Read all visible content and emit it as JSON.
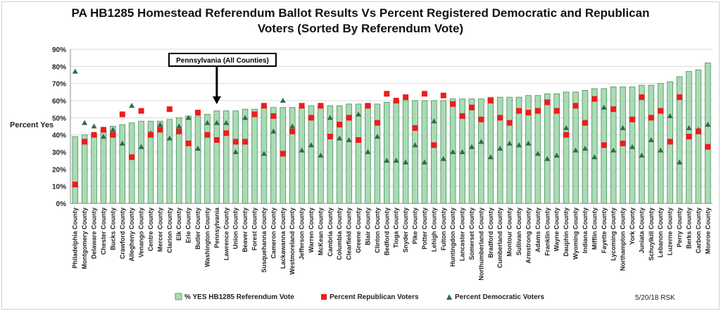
{
  "chart_data": {
    "type": "bar",
    "title_line1": "PA HB1285 Homestead Referendum Ballot Results Vs Percent Registered Democratic and Republican",
    "title_line2": "Voters (Sorted By Referendum Vote)",
    "ylabel": "Percent Yes",
    "ylim": [
      0,
      90
    ],
    "yticks": [
      "0%",
      "10%",
      "20%",
      "30%",
      "40%",
      "50%",
      "60%",
      "70%",
      "80%",
      "90%"
    ],
    "grid": true,
    "legend_position": "bottom",
    "callout": "Pennsylvania (All Counties)",
    "footnote": "5/20/18 RSK",
    "colors": {
      "bar": "#a9dbb5",
      "bar_edge": "#4a8f5a",
      "republican": "#ee1c1c",
      "democratic": "#2e6b4a"
    },
    "categories": [
      "Philadelphia County",
      "Montgomery County",
      "Delaware County",
      "Chester County",
      "Bucks County",
      "Crawford County",
      "Allegheny County",
      "Venango County",
      "Centre County",
      "Mercer County",
      "Clarion County",
      "Elk County",
      "Erie County",
      "Butler County",
      "Washington County",
      "Pennsylvania",
      "Lawrence County",
      "Union County",
      "Beaver County",
      "Forest County",
      "Susquehanna County",
      "Cameron County",
      "Lackawanna County",
      "Westmoreland County",
      "Jefferson County",
      "Warren County",
      "McKean County",
      "Cambria County",
      "Columbia County",
      "Clearfield County",
      "Greene County",
      "Blair County",
      "Clinton County",
      "Bedford County",
      "Tioga County",
      "Snyder County",
      "Pike County",
      "Potter County",
      "Lehigh County",
      "Fulton County",
      "Huntingdon County",
      "Lancaster County",
      "Somerset County",
      "Northumberland County",
      "Bradford County",
      "Cumberland County",
      "Montour County",
      "Sullivan County",
      "Armstrong County",
      "Adams County",
      "Franklin County",
      "Wayne County",
      "Dauphin County",
      "Wyoming County",
      "Indiana County",
      "Mifflin County",
      "Fayette County",
      "Lycoming County",
      "Northampton County",
      "York County",
      "Juniata County",
      "Schuylkill County",
      "Lebanon County",
      "Luzerne County",
      "Perry County",
      "Berks County",
      "Carbon County",
      "Monroe County"
    ],
    "series": [
      {
        "name": "% YES HB1285 Referendum Vote",
        "kind": "bar",
        "values": [
          39,
          40,
          40,
          43,
          45,
          46,
          47,
          48,
          48,
          48,
          49,
          50,
          51,
          51,
          52,
          54,
          54,
          54,
          55,
          55,
          56,
          56,
          56,
          56,
          56,
          57,
          57,
          57,
          57,
          58,
          58,
          58,
          58,
          59,
          60,
          60,
          60,
          60,
          60,
          60,
          61,
          61,
          61,
          61,
          62,
          62,
          62,
          62,
          63,
          63,
          64,
          64,
          65,
          65,
          66,
          67,
          67,
          68,
          68,
          68,
          69,
          69,
          70,
          71,
          74,
          77,
          78,
          82
        ]
      },
      {
        "name": "Percent Republican Voters",
        "kind": "square",
        "values": [
          11,
          36,
          40,
          43,
          40,
          52,
          27,
          54,
          40,
          43,
          55,
          42,
          35,
          53,
          40,
          37,
          41,
          36,
          36,
          52,
          57,
          51,
          29,
          42,
          57,
          50,
          57,
          39,
          46,
          50,
          37,
          57,
          47,
          64,
          60,
          62,
          44,
          64,
          34,
          63,
          58,
          51,
          56,
          49,
          60,
          50,
          47,
          54,
          53,
          54,
          59,
          54,
          40,
          57,
          47,
          61,
          34,
          55,
          35,
          49,
          62,
          50,
          54,
          36,
          62,
          39,
          42,
          33
        ]
      },
      {
        "name": "Percent Democratic Voters",
        "kind": "triangle",
        "values": [
          77,
          47,
          45,
          39,
          43,
          35,
          57,
          33,
          41,
          46,
          38,
          45,
          50,
          32,
          47,
          47,
          47,
          30,
          50,
          52,
          29,
          42,
          60,
          45,
          31,
          34,
          28,
          50,
          38,
          37,
          52,
          30,
          39,
          25,
          25,
          24,
          34,
          24,
          48,
          26,
          30,
          30,
          33,
          36,
          27,
          32,
          35,
          34,
          35,
          29,
          26,
          28,
          44,
          31,
          32,
          27,
          56,
          31,
          44,
          33,
          28,
          37,
          31,
          51,
          24,
          44,
          43,
          46
        ]
      }
    ]
  }
}
